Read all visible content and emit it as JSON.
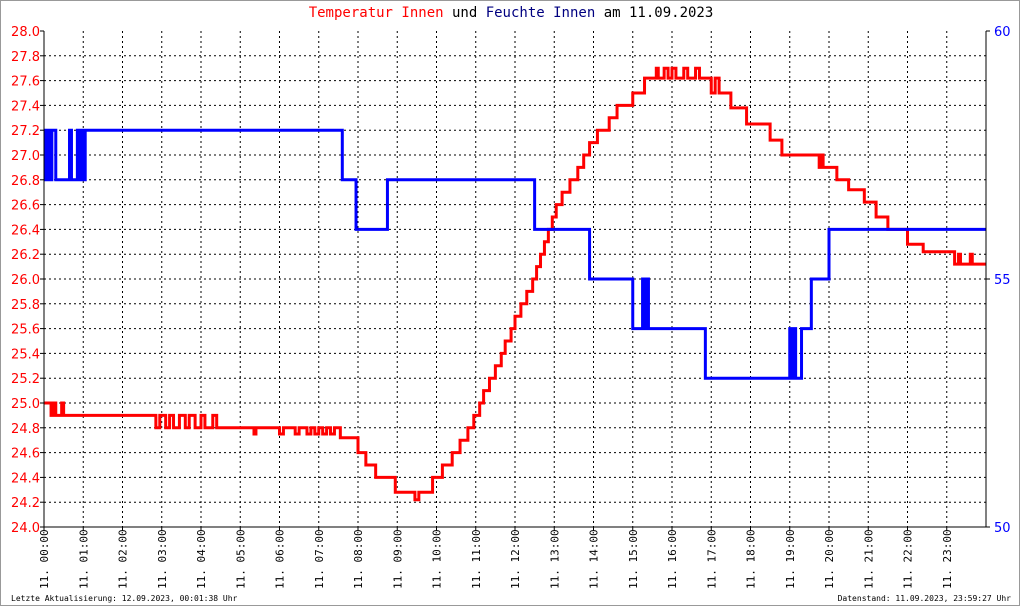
{
  "chart_data": {
    "type": "line",
    "title": {
      "parts": [
        {
          "text": "Temperatur Innen",
          "color": "#ff0000"
        },
        {
          "text": " und ",
          "color": "#000000"
        },
        {
          "text": "Feuchte Innen",
          "color": "#000080"
        },
        {
          "text": " am 11.09.2023",
          "color": "#000000"
        }
      ]
    },
    "xlim": [
      0,
      24
    ],
    "x_tick_labels": [
      "11. 00:00",
      "11. 01:00",
      "11. 02:00",
      "11. 03:00",
      "11. 04:00",
      "11. 05:00",
      "11. 06:00",
      "11. 07:00",
      "11. 08:00",
      "11. 09:00",
      "11. 10:00",
      "11. 11:00",
      "11. 12:00",
      "11. 13:00",
      "11. 14:00",
      "11. 15:00",
      "11. 16:00",
      "11. 17:00",
      "11. 18:00",
      "11. 19:00",
      "11. 20:00",
      "11. 21:00",
      "11. 22:00",
      "11. 23:00"
    ],
    "y_left": {
      "lim": [
        24.0,
        28.0
      ],
      "ticks": [
        "24.0",
        "24.2",
        "24.4",
        "24.6",
        "24.8",
        "25.0",
        "25.2",
        "25.4",
        "25.6",
        "25.8",
        "26.0",
        "26.2",
        "26.4",
        "26.6",
        "26.8",
        "27.0",
        "27.2",
        "27.4",
        "27.6",
        "27.8",
        "28.0"
      ],
      "color": "#ff0000"
    },
    "y_right": {
      "lim": [
        50,
        60
      ],
      "ticks": [
        "50",
        "55",
        "60"
      ],
      "color": "#0000ff"
    },
    "grid": true,
    "step": true,
    "series": [
      {
        "name": "Temperatur Innen",
        "axis": "left",
        "color": "#ff0000",
        "points": [
          [
            0,
            25.0
          ],
          [
            0.18,
            24.9
          ],
          [
            0.25,
            25.0
          ],
          [
            0.3,
            24.9
          ],
          [
            0.45,
            25.0
          ],
          [
            0.5,
            24.9
          ],
          [
            2.85,
            24.8
          ],
          [
            2.95,
            24.9
          ],
          [
            3.1,
            24.8
          ],
          [
            3.2,
            24.9
          ],
          [
            3.3,
            24.8
          ],
          [
            3.45,
            24.9
          ],
          [
            3.6,
            24.8
          ],
          [
            3.7,
            24.9
          ],
          [
            3.85,
            24.8
          ],
          [
            4.0,
            24.9
          ],
          [
            4.1,
            24.8
          ],
          [
            4.3,
            24.9
          ],
          [
            4.4,
            24.8
          ],
          [
            5.35,
            24.75
          ],
          [
            5.4,
            24.8
          ],
          [
            6.0,
            24.75
          ],
          [
            6.1,
            24.8
          ],
          [
            6.4,
            24.75
          ],
          [
            6.5,
            24.8
          ],
          [
            6.7,
            24.75
          ],
          [
            6.8,
            24.8
          ],
          [
            6.9,
            24.75
          ],
          [
            7.0,
            24.8
          ],
          [
            7.1,
            24.75
          ],
          [
            7.2,
            24.8
          ],
          [
            7.3,
            24.75
          ],
          [
            7.4,
            24.8
          ],
          [
            7.55,
            24.72
          ],
          [
            8.0,
            24.6
          ],
          [
            8.2,
            24.5
          ],
          [
            8.45,
            24.4
          ],
          [
            8.95,
            24.28
          ],
          [
            9.45,
            24.22
          ],
          [
            9.55,
            24.28
          ],
          [
            9.9,
            24.4
          ],
          [
            10.15,
            24.5
          ],
          [
            10.4,
            24.6
          ],
          [
            10.6,
            24.7
          ],
          [
            10.8,
            24.8
          ],
          [
            10.95,
            24.9
          ],
          [
            11.1,
            25.0
          ],
          [
            11.2,
            25.1
          ],
          [
            11.35,
            25.2
          ],
          [
            11.5,
            25.3
          ],
          [
            11.65,
            25.4
          ],
          [
            11.75,
            25.5
          ],
          [
            11.9,
            25.6
          ],
          [
            12.0,
            25.7
          ],
          [
            12.15,
            25.8
          ],
          [
            12.3,
            25.9
          ],
          [
            12.45,
            26.0
          ],
          [
            12.55,
            26.1
          ],
          [
            12.65,
            26.2
          ],
          [
            12.75,
            26.3
          ],
          [
            12.85,
            26.4
          ],
          [
            12.95,
            26.5
          ],
          [
            13.05,
            26.6
          ],
          [
            13.2,
            26.7
          ],
          [
            13.4,
            26.8
          ],
          [
            13.6,
            26.9
          ],
          [
            13.75,
            27.0
          ],
          [
            13.9,
            27.1
          ],
          [
            14.1,
            27.2
          ],
          [
            14.4,
            27.3
          ],
          [
            14.6,
            27.4
          ],
          [
            15.0,
            27.5
          ],
          [
            15.3,
            27.62
          ],
          [
            15.6,
            27.7
          ],
          [
            15.65,
            27.62
          ],
          [
            15.8,
            27.7
          ],
          [
            15.9,
            27.62
          ],
          [
            16.0,
            27.7
          ],
          [
            16.1,
            27.62
          ],
          [
            16.3,
            27.7
          ],
          [
            16.4,
            27.62
          ],
          [
            16.6,
            27.7
          ],
          [
            16.7,
            27.62
          ],
          [
            17.0,
            27.5
          ],
          [
            17.1,
            27.62
          ],
          [
            17.2,
            27.5
          ],
          [
            17.5,
            27.38
          ],
          [
            17.9,
            27.25
          ],
          [
            18.5,
            27.12
          ],
          [
            18.8,
            27.0
          ],
          [
            19.75,
            26.9
          ],
          [
            19.8,
            27.0
          ],
          [
            19.85,
            26.9
          ],
          [
            20.2,
            26.8
          ],
          [
            20.5,
            26.72
          ],
          [
            20.9,
            26.62
          ],
          [
            21.2,
            26.5
          ],
          [
            21.5,
            26.4
          ],
          [
            22.0,
            26.28
          ],
          [
            22.4,
            26.22
          ],
          [
            23.2,
            26.12
          ],
          [
            23.3,
            26.2
          ],
          [
            23.35,
            26.12
          ],
          [
            23.6,
            26.2
          ],
          [
            23.65,
            26.12
          ],
          [
            24,
            26.12
          ]
        ]
      },
      {
        "name": "Feuchte Innen",
        "axis": "right",
        "color": "#0000ff",
        "points": [
          [
            0,
            58
          ],
          [
            0.05,
            57
          ],
          [
            0.1,
            58
          ],
          [
            0.15,
            57
          ],
          [
            0.2,
            58
          ],
          [
            0.3,
            57
          ],
          [
            0.65,
            58
          ],
          [
            0.7,
            57
          ],
          [
            0.85,
            58
          ],
          [
            0.9,
            57
          ],
          [
            0.95,
            58
          ],
          [
            1.0,
            57
          ],
          [
            1.05,
            58
          ],
          [
            7.6,
            57
          ],
          [
            7.95,
            56
          ],
          [
            8.75,
            57
          ],
          [
            12.5,
            56
          ],
          [
            13.9,
            55
          ],
          [
            15.0,
            54
          ],
          [
            15.25,
            55
          ],
          [
            15.3,
            54
          ],
          [
            15.35,
            55
          ],
          [
            15.4,
            54
          ],
          [
            16.85,
            53
          ],
          [
            19.0,
            54
          ],
          [
            19.05,
            53
          ],
          [
            19.1,
            54
          ],
          [
            19.15,
            53
          ],
          [
            19.3,
            54
          ],
          [
            19.55,
            55
          ],
          [
            20.0,
            56
          ],
          [
            24,
            56
          ]
        ]
      }
    ]
  },
  "footer": {
    "left": "Letzte Aktualisierung: 12.09.2023, 00:01:38 Uhr",
    "right": "Datenstand: 11.09.2023, 23:59:27 Uhr"
  }
}
